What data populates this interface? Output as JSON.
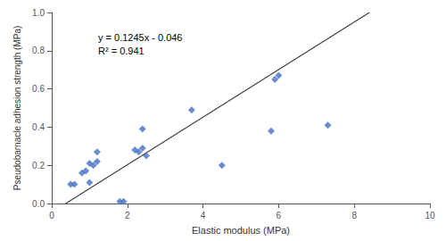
{
  "chart_data": {
    "type": "scatter",
    "xlabel": "Elastic modulus (MPa)",
    "ylabel": "Pseudobarnacle adhesion strength (MPa)",
    "series": [
      {
        "type": "scatter",
        "marker": "diamond",
        "color": "#4472C4",
        "x": [
          0.5,
          0.6,
          0.8,
          0.9,
          1.0,
          1.0,
          1.1,
          1.2,
          1.2,
          1.8,
          1.9,
          2.2,
          2.3,
          2.4,
          2.4,
          2.5,
          3.7,
          4.5,
          5.8,
          5.9,
          6.0,
          7.3
        ],
        "values": [
          0.1,
          0.1,
          0.16,
          0.17,
          0.21,
          0.11,
          0.2,
          0.22,
          0.27,
          0.01,
          0.01,
          0.28,
          0.27,
          0.29,
          0.39,
          0.25,
          0.49,
          0.2,
          0.38,
          0.65,
          0.67,
          0.41
        ]
      },
      {
        "type": "line",
        "line_style": "solid",
        "color": "#404040",
        "x": [
          0.37,
          8.4
        ],
        "values": [
          6.5e-05,
          0.9998
        ]
      }
    ],
    "annotations": [
      "y = 0.1245x - 0.046",
      "R² = 0.941"
    ],
    "xlim": [
      0,
      10
    ],
    "ylim": [
      0,
      1
    ],
    "xticks": [
      0,
      2,
      4,
      6,
      8,
      10
    ],
    "yticks": [
      {
        "value": 0,
        "label": "0.0"
      },
      0.2,
      0.4,
      0.6,
      0.8,
      {
        "value": 1,
        "label": "1.0"
      }
    ],
    "grid": false
  }
}
